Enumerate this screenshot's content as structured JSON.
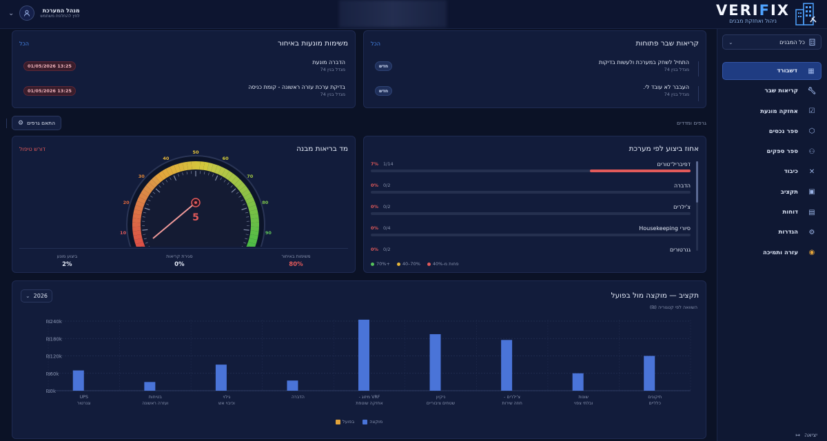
{
  "brand": {
    "name_a": "VERI",
    "name_x": "F",
    "name_b": "IX",
    "tagline": "ניהול ואחזקת מבנים"
  },
  "user": {
    "name": "מנהל המערכת",
    "sub": "לחץ להחלפת משתמש"
  },
  "sidebar": {
    "building_select": "כל המבנים",
    "items": [
      {
        "label": "דשבורד",
        "icon": "dashboard-icon",
        "active": true
      },
      {
        "label": "קריאות שבר",
        "icon": "wrench-icon"
      },
      {
        "label": "אחזקה מונעת",
        "icon": "checklist-icon"
      },
      {
        "label": "ספר נכסים",
        "icon": "box-icon"
      },
      {
        "label": "ספר ספקים",
        "icon": "users-icon"
      },
      {
        "label": "כיבוד",
        "icon": "cutlery-icon"
      },
      {
        "label": "תקציב",
        "icon": "wallet-icon"
      },
      {
        "label": "דוחות",
        "icon": "report-icon"
      },
      {
        "label": "הגדרות",
        "icon": "gear-icon"
      },
      {
        "label": "עזרה ותמיכה",
        "icon": "lifebuoy-icon"
      }
    ],
    "logout": "יציאה"
  },
  "open_calls": {
    "title": "קריאות שבר פתוחות",
    "link": "הכל",
    "rows": [
      {
        "title": "התחיל לשחק במערכת ולעשות בדיקות",
        "building": "מגדל בנין 74",
        "badge": "חדש"
      },
      {
        "title": "העבבר לא עובד לי.",
        "building": "מגדל בנין 74",
        "badge": "חדש"
      }
    ]
  },
  "late_tasks": {
    "title": "משימות מונעות באיחור",
    "link": "הכל",
    "rows": [
      {
        "title": "הדברה מונעת",
        "building": "מגדל בנין 74",
        "badge": "13:25 01/05/2026"
      },
      {
        "title": "בדיקת ערכת עזרה ראשונה - קומת כניסה",
        "building": "מגדל בנין 74",
        "badge": "13:25 01/05/2026"
      }
    ]
  },
  "section_label": "גרפים ומדדים",
  "fit_button": "התאם גרפים",
  "performance": {
    "title": "אחוז ביצוע לפי מערכת",
    "rows": [
      {
        "name": "דפיבריל־טורים",
        "count": "1/14",
        "pct": "7%",
        "value": 7
      },
      {
        "name": "הדברה",
        "count": "0/2",
        "pct": "0%",
        "value": 0
      },
      {
        "name": "צ'ילרים",
        "count": "0/2",
        "pct": "0%",
        "value": 0
      },
      {
        "name": "סיורי Housekeeping",
        "count": "0/4",
        "pct": "0%",
        "value": 0
      },
      {
        "name": "גנרטורים",
        "count": "0/2",
        "pct": "0%",
        "value": 0
      }
    ],
    "legend": [
      {
        "label": "70%+",
        "color": "#56c25b"
      },
      {
        "label": "40–70%",
        "color": "#e7b73a"
      },
      {
        "label": "פחות מ-40%",
        "color": "#e25a5a"
      }
    ]
  },
  "health": {
    "title": "מד בריאות מבנה",
    "status": "דורש טיפול",
    "value": "5",
    "gauge_value": 5,
    "ticks": [
      "10",
      "20",
      "30",
      "40",
      "50",
      "60",
      "70",
      "80",
      "90"
    ],
    "stats": [
      {
        "label": "ביצוע מונע",
        "value": "2%",
        "red": false
      },
      {
        "label": "סגירת קריאות",
        "value": "0%",
        "red": false
      },
      {
        "label": "משימות באיחור",
        "value": "80%",
        "red": true
      }
    ]
  },
  "budget": {
    "title": "תקציב — מוקצה מול בפועל",
    "subtitle": "השוואה לפי קטגוריה (₪)",
    "year": "2026",
    "legend_allocated": "מוקצה",
    "legend_actual": "בפועל",
    "colors": {
      "allocated": "#4a74d8",
      "actual": "#e2a33a"
    }
  },
  "chart_data": {
    "type": "bar",
    "title": "תקציב — מוקצה מול בפועל",
    "subtitle": "השוואה לפי קטגוריה (₪)",
    "categories": [
      [
        "UPS",
        "וגנרטור"
      ],
      [
        "בטיחות",
        "ועזרה ראשונה"
      ],
      [
        "גילוי",
        "וכיבוי אש"
      ],
      [
        "הדברה"
      ],
      [
        "VRF מיזוג -",
        "אחזקה שוטפת"
      ],
      [
        "ניקיון",
        "שטחים ציבוריים"
      ],
      [
        "צ'ילרים -",
        "חוזה שירות"
      ],
      [
        "שונות",
        "ובלתי צפוי"
      ],
      [
        "תיקונים",
        "כלליים"
      ]
    ],
    "series": [
      {
        "name": "מוקצה",
        "values": [
          70000,
          30000,
          90000,
          35000,
          245000,
          195000,
          175000,
          60000,
          120000
        ]
      },
      {
        "name": "בפועל",
        "values": [
          0,
          0,
          0,
          0,
          0,
          0,
          0,
          0,
          0
        ]
      }
    ],
    "yticks": [
      "₪0k",
      "₪60k",
      "₪120k",
      "₪180k",
      "₪240k"
    ],
    "ylim": [
      0,
      240000
    ],
    "grid": true,
    "legend": "bottom"
  }
}
